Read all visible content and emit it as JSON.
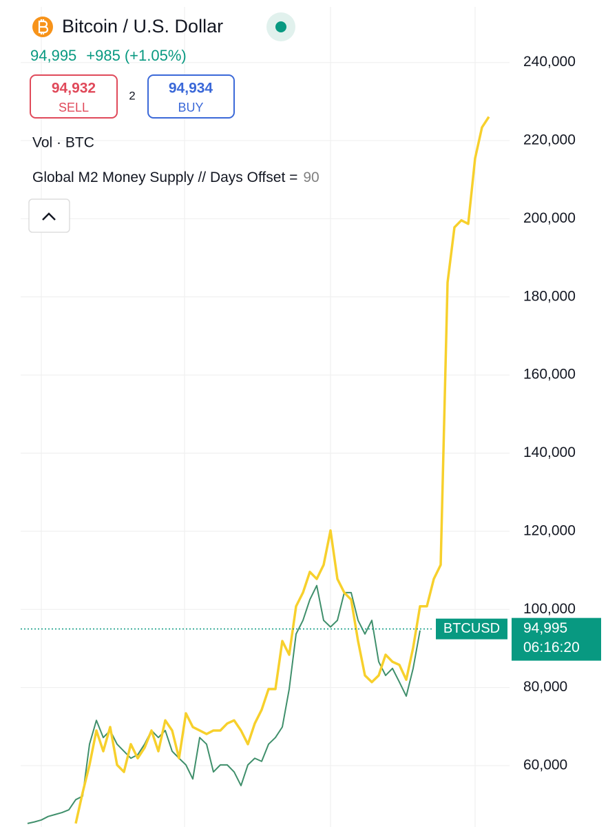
{
  "header": {
    "title": "Bitcoin / U.S. Dollar",
    "price": "94,995",
    "change": "+985",
    "change_pct": "(+1.05%)",
    "sell": {
      "price": "94,932",
      "label": "SELL"
    },
    "spread": "2",
    "buy": {
      "price": "94,934",
      "label": "BUY"
    },
    "volume": "Vol · BTC",
    "m2_label": "Global M2 Money Supply // Days Offset =",
    "m2_offset": "90"
  },
  "chart_data": {
    "type": "line",
    "ylim": [
      44300,
      256000
    ],
    "yticks": [
      {
        "value": 60000,
        "label": "60,000"
      },
      {
        "value": 80000,
        "label": "80,000"
      },
      {
        "value": 100000,
        "label": "100,000"
      },
      {
        "value": 120000,
        "label": "120,000"
      },
      {
        "value": 140000,
        "label": "140,000"
      },
      {
        "value": 160000,
        "label": "160,000"
      },
      {
        "value": 180000,
        "label": "180,000"
      },
      {
        "value": 200000,
        "label": "200,000"
      },
      {
        "value": 220000,
        "label": "220,000"
      },
      {
        "value": 240000,
        "label": "240,000"
      }
    ],
    "grid": true,
    "series": [
      {
        "color": "#3f8f6b",
        "values": [
          45200,
          45600,
          46100,
          47000,
          47500,
          48000,
          48700,
          51300,
          52200,
          65500,
          71600,
          67200,
          69000,
          65500,
          63700,
          61900,
          62800,
          65500,
          69000,
          67200,
          69000,
          63700,
          61900,
          60200,
          56600,
          67200,
          65500,
          58400,
          60200,
          60200,
          58400,
          54900,
          60200,
          61900,
          61100,
          65500,
          67200,
          69900,
          79600,
          93700,
          97200,
          102500,
          106100,
          97200,
          95500,
          97200,
          104300,
          104300,
          97200,
          93700,
          97200,
          86600,
          83100,
          84900,
          81400,
          77800,
          84900,
          94600,
          null,
          null,
          null,
          null,
          null,
          null,
          null,
          null,
          null,
          null
        ]
      },
      {
        "color": "#f7d02c",
        "values": [
          null,
          null,
          null,
          null,
          null,
          null,
          null,
          45200,
          53100,
          60200,
          69000,
          63700,
          69900,
          60200,
          58400,
          65500,
          61900,
          64600,
          69000,
          63700,
          71600,
          69000,
          61900,
          73400,
          69900,
          69000,
          68100,
          69000,
          69000,
          70800,
          71600,
          69000,
          65500,
          70800,
          74300,
          79600,
          79600,
          91900,
          88400,
          100800,
          104300,
          109600,
          107800,
          111400,
          120200,
          107800,
          104300,
          102500,
          91900,
          83100,
          81400,
          83100,
          88400,
          86600,
          85800,
          82000,
          90200,
          100800,
          100800,
          107800,
          111400,
          183700,
          197800,
          199600,
          198700,
          215500,
          223400,
          226100
        ]
      }
    ],
    "price_line": {
      "label": "BTCUSD",
      "value": 94995,
      "value_label": "94,995",
      "countdown": "06:16:20"
    }
  }
}
